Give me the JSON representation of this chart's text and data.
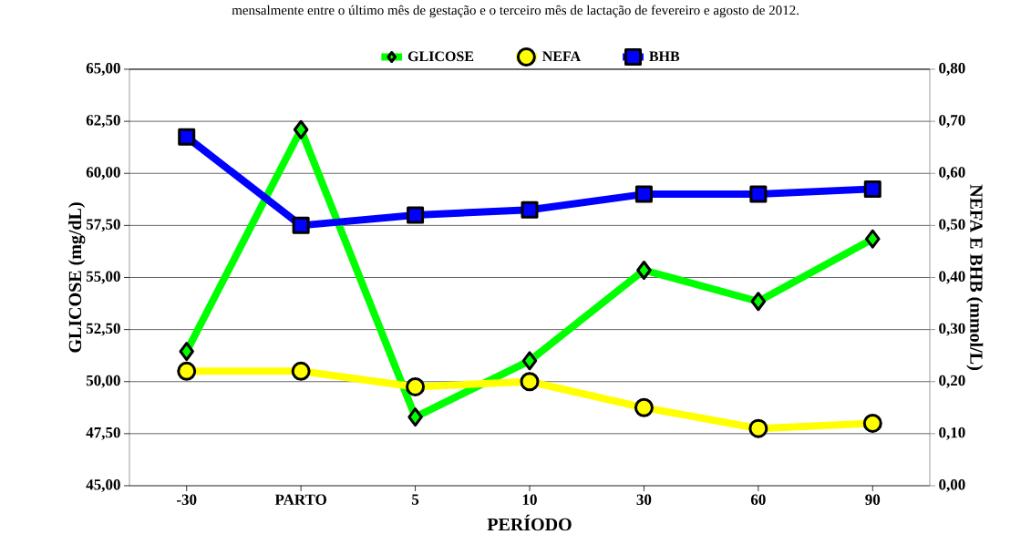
{
  "chart_data": {
    "type": "line",
    "annotations": [
      "mensalmente entre o último mês de gestação e o terceiro mês de lactação de fevereiro e agosto de 2012."
    ],
    "xlabel": "PERÍODO",
    "ylabel": "GLICOSE (mg/dL)",
    "y2label": "NEFA E BHB (mmol/L)",
    "categories": [
      "-30",
      "PARTO",
      "5",
      "10",
      "30",
      "60",
      "90"
    ],
    "series": [
      {
        "name": "GLICOSE",
        "color": "#00ff00",
        "marker": "diamond",
        "values": [
          51.45,
          62.1,
          48.3,
          51.0,
          55.35,
          53.85,
          56.85
        ]
      },
      {
        "name": "NEFA",
        "color": "#ffff00",
        "marker": "circle",
        "axis": "y2",
        "values": [
          0.22,
          0.22,
          0.19,
          0.2,
          0.15,
          0.11,
          0.12
        ]
      },
      {
        "name": "BHB",
        "color": "#0000ff",
        "marker": "square",
        "axis": "y2",
        "values": [
          0.67,
          0.5,
          0.52,
          0.53,
          0.56,
          0.56,
          0.57
        ]
      }
    ],
    "ylim": [
      45,
      65
    ],
    "yticks": [
      {
        "value": 45,
        "label": "45,00"
      },
      {
        "value": 47.5,
        "label": "47,50"
      },
      {
        "value": 50,
        "label": "50,00"
      },
      {
        "value": 52.5,
        "label": "52,50"
      },
      {
        "value": 55,
        "label": "55,00"
      },
      {
        "value": 57.5,
        "label": "57,50"
      },
      {
        "value": 60,
        "label": "60,00"
      },
      {
        "value": 62.5,
        "label": "62,50"
      },
      {
        "value": 65,
        "label": "65,00"
      }
    ],
    "y2lim": [
      0,
      0.8
    ],
    "y2ticks": [
      {
        "value": 0,
        "label": "0,00"
      },
      {
        "value": 0.1,
        "label": "0,10"
      },
      {
        "value": 0.2,
        "label": "0,20"
      },
      {
        "value": 0.3,
        "label": "0,30"
      },
      {
        "value": 0.4,
        "label": "0,40"
      },
      {
        "value": 0.5,
        "label": "0,50"
      },
      {
        "value": 0.6,
        "label": "0,60"
      },
      {
        "value": 0.7,
        "label": "0,70"
      },
      {
        "value": 0.8,
        "label": "0,80"
      }
    ],
    "grid": "y",
    "legend": "top",
    "line_style": "solid"
  }
}
